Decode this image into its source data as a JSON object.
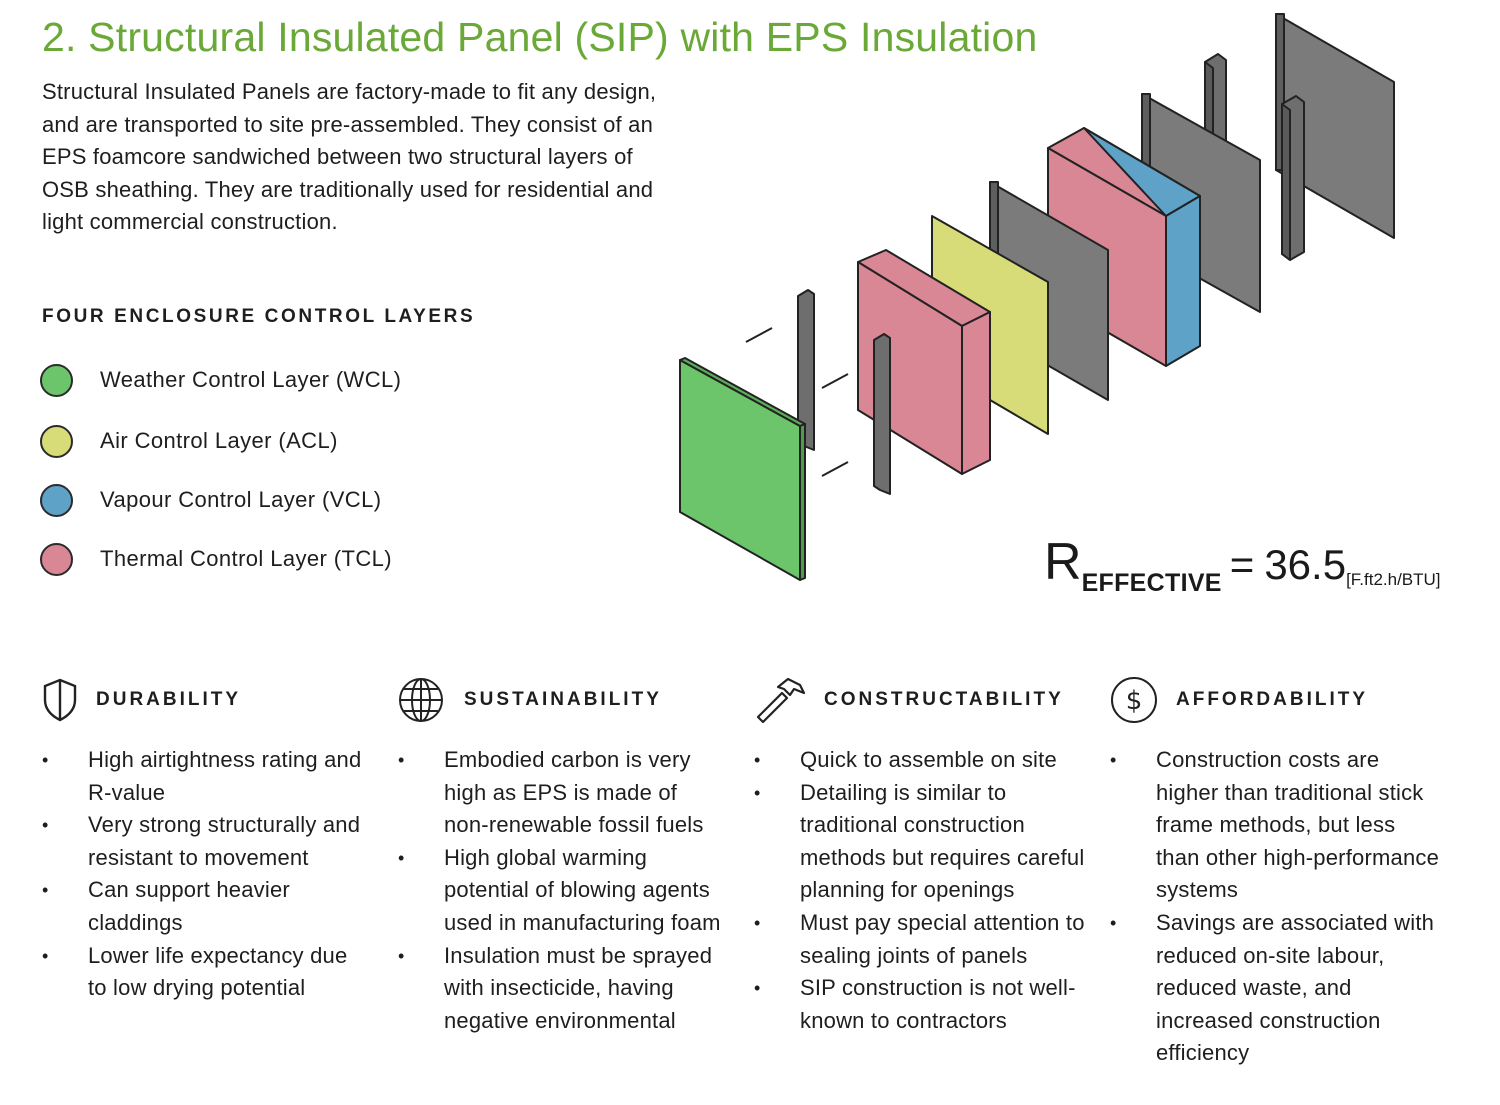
{
  "title": "2. Structural Insulated Panel (SIP) with EPS Insulation",
  "intro": "Structural Insulated Panels are factory-made to fit any design, and are transported to site pre-assembled. They consist of an EPS foamcore sandwiched between two structural layers of OSB sheathing. They are traditionally used for residential and light commercial construction.",
  "layers": {
    "heading": "FOUR ENCLOSURE CONTROL LAYERS",
    "items": [
      {
        "label": "Weather Control Layer (WCL)",
        "color": "#6cc56a"
      },
      {
        "label": "Air Control Layer (ACL)",
        "color": "#d7db78"
      },
      {
        "label": "Vapour Control Layer (VCL)",
        "color": "#5fa2c7"
      },
      {
        "label": "Thermal Control Layer (TCL)",
        "color": "#d98794"
      }
    ]
  },
  "r_effective": {
    "r": "R",
    "sub": "EFFECTIVE",
    "eq": "=",
    "value": "36.5",
    "unit": "[F.ft2.h/BTU]"
  },
  "columns": [
    {
      "icon": "shield-icon",
      "title": "DURABILITY",
      "points": [
        "High airtightness rating and R-value",
        "Very strong structurally and resistant to movement",
        "Can support heavier claddings",
        "Lower life expectancy due to low drying potential"
      ]
    },
    {
      "icon": "globe-icon",
      "title": "SUSTAINABILITY",
      "points": [
        "Embodied carbon is very high as EPS is made of non-renewable fossil fuels",
        "High global warming potential of blowing agents used in manufacturing foam",
        "Insulation must be sprayed with insecticide, having negative environmental"
      ]
    },
    {
      "icon": "hammer-icon",
      "title": "CONSTRUCTABILITY",
      "points": [
        "Quick to assemble on site",
        "Detailing is similar to traditional construction methods but requires careful planning for openings",
        "Must pay special attention to sealing joints of panels",
        "SIP construction is not well-known to contractors"
      ]
    },
    {
      "icon": "dollar-icon",
      "title": "AFFORDABILITY",
      "points": [
        "Construction costs are higher than traditional stick frame methods, but less than other high-performance systems",
        "Savings are associated with reduced on-site labour, reduced waste, and increased construction efficiency"
      ]
    }
  ],
  "colors": {
    "title_green": "#6aa838",
    "gray_panel": "#7a7a7a",
    "dark_panel": "#5a5a5a"
  }
}
